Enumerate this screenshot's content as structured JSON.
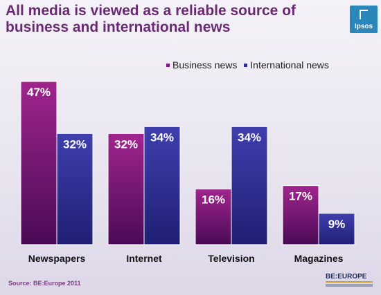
{
  "chart_data": {
    "type": "bar",
    "title": "All media is viewed as a reliable source of business and international news",
    "title_lines": [
      "All media is viewed as a reliable source of",
      "business and international news"
    ],
    "categories": [
      "Newspapers",
      "Internet",
      "Television",
      "Magazines"
    ],
    "series": [
      {
        "name": "Business news",
        "values": [
          47,
          32,
          16,
          17
        ],
        "labels": [
          "47%",
          "32%",
          "16%",
          "17%"
        ],
        "color_top": "#a0258d",
        "color_bottom": "#4a0a55"
      },
      {
        "name": "International news",
        "values": [
          32,
          34,
          34,
          9
        ],
        "labels": [
          "32%",
          "34%",
          "34%",
          "9%"
        ],
        "color_top": "#3f3fae",
        "color_bottom": "#1f1f73"
      }
    ],
    "ylim": [
      0,
      50
    ],
    "value_format": "%",
    "grid": false,
    "legend": "top-right"
  },
  "brand": {
    "logo_text": "Ipsos",
    "logo_color": "#2b86b9",
    "footer_logo": "BE:EUROPE"
  },
  "source": "Source: BE:Europe 2011"
}
